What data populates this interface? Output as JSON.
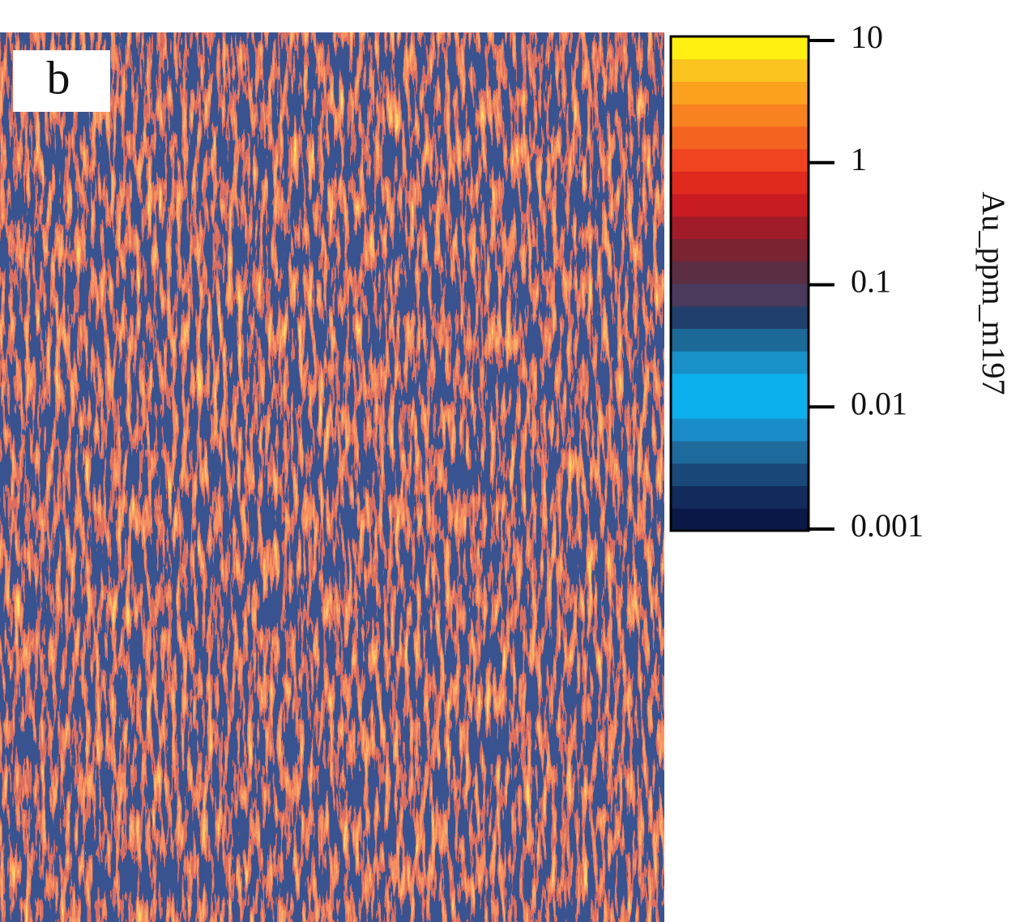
{
  "chart_data": {
    "type": "heatmap",
    "panel_label": "b",
    "colorbar": {
      "label": "Au_ppm_m197",
      "log": true,
      "clim": [
        0.001,
        10
      ],
      "ticks": [
        10,
        1,
        0.1,
        0.01,
        0.001
      ],
      "colors": [
        "#0a1848",
        "#132a5c",
        "#1a4878",
        "#1e6a9c",
        "#1a8cc8",
        "#0cb0ec",
        "#0cb0ec",
        "#1890c8",
        "#1c6896",
        "#203f6c",
        "#4a3a5c",
        "#5c2e44",
        "#7a2432",
        "#a01c28",
        "#c81c22",
        "#e02a1e",
        "#f04420",
        "#f46420",
        "#f88220",
        "#fca21e",
        "#fcc41e",
        "#fff012"
      ]
    }
  }
}
